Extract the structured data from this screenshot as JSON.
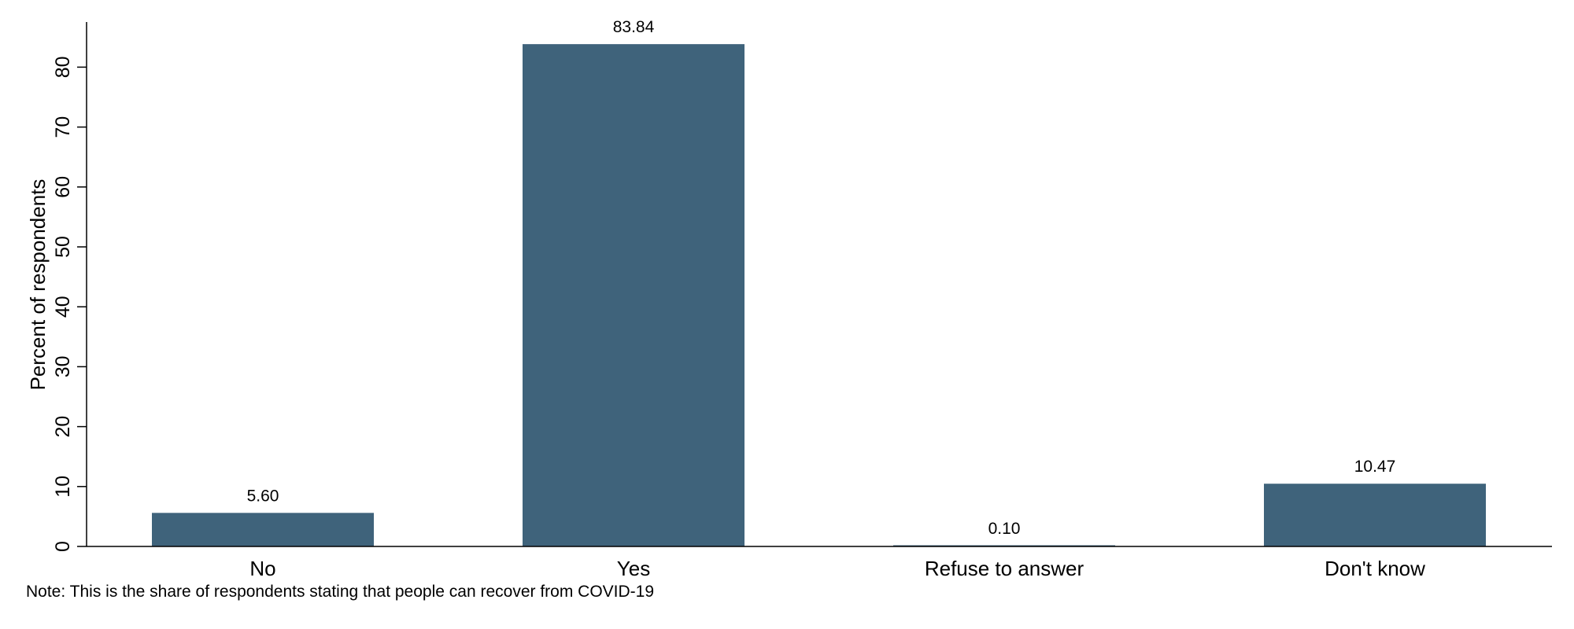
{
  "chart_data": {
    "type": "bar",
    "categories": [
      "No",
      "Yes",
      "Refuse to answer",
      "Don't know"
    ],
    "values": [
      5.6,
      83.84,
      0.1,
      10.47
    ],
    "value_labels": [
      "5.60",
      "83.84",
      "0.10",
      "10.47"
    ],
    "ylabel": "Percent of respondents",
    "xlabel": "",
    "ylim": [
      0,
      87
    ],
    "yticks": [
      0,
      10,
      20,
      30,
      40,
      50,
      60,
      70,
      80
    ],
    "grid": false,
    "bar_color": "#3f637b",
    "note": "Note: This is the share of respondents stating that people can recover from COVID-19"
  }
}
